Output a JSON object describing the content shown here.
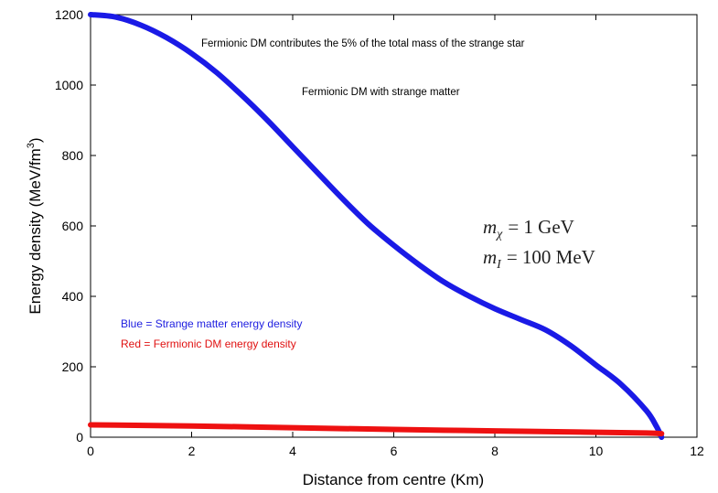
{
  "chart_data": {
    "type": "line",
    "xlabel": "Distance from centre (Km)",
    "ylabel_main": "Energy density (MeV/fm",
    "ylabel_sup": "3",
    "ylabel_tail": ")",
    "xlim": [
      0,
      12
    ],
    "ylim": [
      0,
      1200
    ],
    "x_ticks": [
      "0",
      "2",
      "4",
      "6",
      "8",
      "10",
      "12"
    ],
    "y_ticks": [
      "0",
      "200",
      "400",
      "600",
      "800",
      "1000",
      "1200"
    ],
    "annotations": [
      "Fermionic DM contributes the 5% of the total mass of the strange star",
      "Fermionic DM with strange matter"
    ],
    "params": {
      "line1_sym": "m",
      "line1_sub": "χ",
      "line1_val": "= 1 GeV",
      "line2_sym": "m",
      "line2_sub": "I",
      "line2_val": "= 100 MeV"
    },
    "legend": [
      {
        "label": "Blue = Strange matter energy density",
        "color": "#2020e0"
      },
      {
        "label": "Red = Fermionic DM energy density",
        "color": "#e01010"
      }
    ],
    "series": [
      {
        "color": "#1a1ae6",
        "x": [
          0,
          0.5,
          1,
          1.5,
          2,
          2.5,
          3,
          3.5,
          4,
          4.5,
          5,
          5.5,
          6,
          6.5,
          7,
          7.5,
          8,
          8.5,
          9,
          9.5,
          10,
          10.5,
          11,
          11.2,
          11.3
        ],
        "y": [
          1200,
          1193,
          1170,
          1135,
          1090,
          1035,
          970,
          900,
          825,
          750,
          675,
          605,
          545,
          490,
          440,
          400,
          365,
          335,
          305,
          260,
          205,
          150,
          75,
          30,
          0
        ]
      },
      {
        "color": "#ee1111",
        "x": [
          0,
          2,
          4,
          6,
          8,
          10,
          11,
          11.3
        ],
        "y": [
          35,
          32,
          27,
          22,
          18,
          14,
          12,
          10
        ]
      }
    ]
  }
}
